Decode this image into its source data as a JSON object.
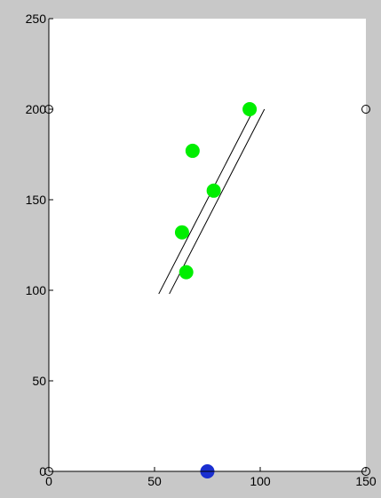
{
  "chart_data": {
    "type": "scatter",
    "title": "",
    "xlabel": "",
    "ylabel": "",
    "xlim": [
      0,
      150
    ],
    "ylim": [
      0,
      250
    ],
    "grid": false,
    "x_ticks": [
      0,
      50,
      100,
      150
    ],
    "y_ticks": [
      0,
      50,
      100,
      150,
      200,
      250
    ],
    "x_tick_labels": [
      "0",
      "50",
      "100",
      "150"
    ],
    "y_tick_labels": [
      "0",
      "50",
      "100",
      "150",
      "200",
      "250"
    ],
    "series": [
      {
        "marker": "filled-circle",
        "color": "#00ee00",
        "points": [
          {
            "x": 95,
            "y": 200
          },
          {
            "x": 68,
            "y": 177
          },
          {
            "x": 78,
            "y": 155
          },
          {
            "x": 63,
            "y": 132
          },
          {
            "x": 65,
            "y": 110
          }
        ]
      },
      {
        "marker": "filled-circle",
        "color": "#1a2fd0",
        "points": [
          {
            "x": 75,
            "y": 0
          }
        ]
      },
      {
        "marker": "open-circle",
        "color": "#000000",
        "points": [
          {
            "x": 0,
            "y": 200
          },
          {
            "x": 150,
            "y": 200
          },
          {
            "x": 0,
            "y": 0
          },
          {
            "x": 150,
            "y": 0
          }
        ]
      }
    ],
    "lines": [
      {
        "color": "#000000",
        "x": [
          52,
          97
        ],
        "y": [
          98,
          200
        ]
      },
      {
        "color": "#000000",
        "x": [
          57,
          102
        ],
        "y": [
          98,
          200
        ]
      }
    ]
  }
}
